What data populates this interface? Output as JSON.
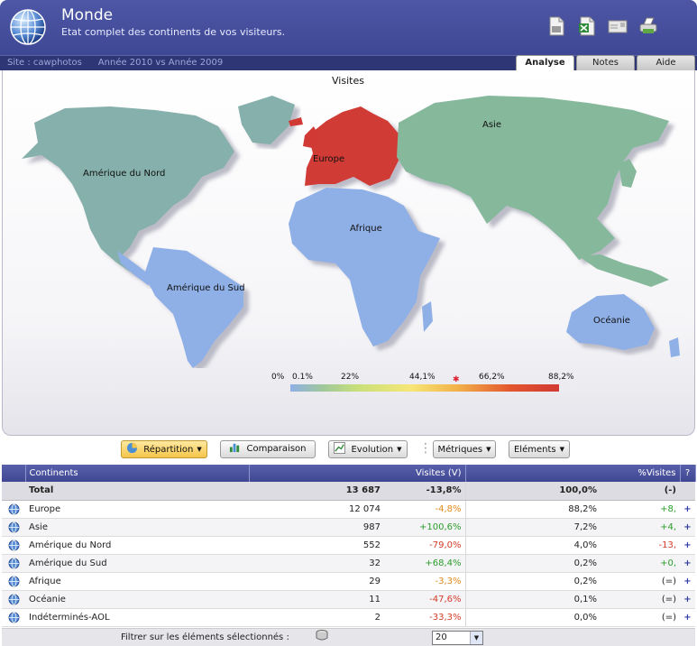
{
  "header": {
    "title": "Monde",
    "subtitle": "Etat complet des continents de vos visiteurs.",
    "site_label": "Site : cawphotos",
    "period": "Année 2010 vs Année 2009",
    "icons": [
      "pdf-export-icon",
      "excel-export-icon",
      "email-icon",
      "print-icon"
    ]
  },
  "tabs": [
    {
      "label": "Analyse",
      "active": true
    },
    {
      "label": "Notes",
      "active": false
    },
    {
      "label": "Aide",
      "active": false
    }
  ],
  "map": {
    "title": "Visites",
    "regions": {
      "north_america": "Amérique du Nord",
      "south_america": "Amérique du Sud",
      "europe": "Europe",
      "africa": "Afrique",
      "asia": "Asie",
      "oceania": "Océanie"
    },
    "legend": [
      "0%",
      "0.1%",
      "22%",
      "44,1%",
      "66,2%",
      "88,2%"
    ],
    "colors": {
      "europe": "#d13a34",
      "asia": "#86b89c",
      "north_america": "#86b0ab",
      "low": "#8fb0e6"
    }
  },
  "toolbar": {
    "repartition": "Répartition",
    "comparaison": "Comparaison",
    "evolution": "Evolution",
    "metriques": "Métriques",
    "elements": "Eléments"
  },
  "table": {
    "headers": {
      "continents": "Continents",
      "visites": "Visites (V)",
      "pct": "%Visites",
      "help": "?"
    },
    "total": {
      "label": "Total",
      "visits": "13 687",
      "change": "-13,8%",
      "pct": "100,0%",
      "pct_change": "(-)"
    },
    "rows": [
      {
        "label": "Europe",
        "visits": "12 074",
        "change": "-4,8%",
        "change_type": "neu",
        "pct": "88,2%",
        "pct_change": "+8,",
        "pct_change_type": "pos"
      },
      {
        "label": "Asie",
        "visits": "987",
        "change": "+100,6%",
        "change_type": "pos",
        "pct": "7,2%",
        "pct_change": "+4,",
        "pct_change_type": "pos"
      },
      {
        "label": "Amérique du Nord",
        "visits": "552",
        "change": "-79,0%",
        "change_type": "neg",
        "pct": "4,0%",
        "pct_change": "-13,",
        "pct_change_type": "neg"
      },
      {
        "label": "Amérique du Sud",
        "visits": "32",
        "change": "+68,4%",
        "change_type": "pos",
        "pct": "0,2%",
        "pct_change": "+0,",
        "pct_change_type": "pos"
      },
      {
        "label": "Afrique",
        "visits": "29",
        "change": "-3,3%",
        "change_type": "neu",
        "pct": "0,2%",
        "pct_change": "(=)",
        "pct_change_type": "par"
      },
      {
        "label": "Océanie",
        "visits": "11",
        "change": "-47,6%",
        "change_type": "neg",
        "pct": "0,1%",
        "pct_change": "(=)",
        "pct_change_type": "par"
      },
      {
        "label": "Indéterminés-AOL",
        "visits": "2",
        "change": "-33,3%",
        "change_type": "neg",
        "pct": "0,0%",
        "pct_change": "(=)",
        "pct_change_type": "par"
      }
    ]
  },
  "footer": {
    "filter_label": "Filtrer sur les éléments sélectionnés :",
    "page_size": "20"
  }
}
